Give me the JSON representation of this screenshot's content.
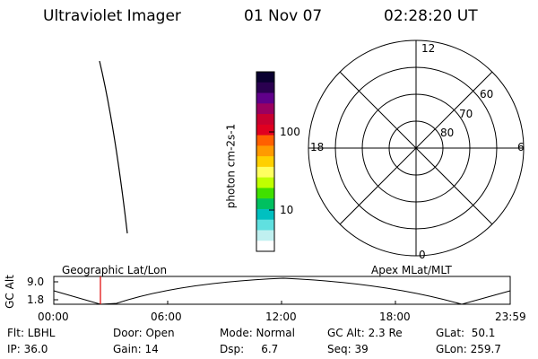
{
  "header": {
    "instrument": "Ultraviolet Imager",
    "date": "01 Nov 07",
    "time": "02:28:20 UT"
  },
  "colorbar": {
    "label": "photon cm-2s-1",
    "ticks": [
      "100",
      "10"
    ],
    "colors": [
      "#0a0030",
      "#2a0050",
      "#60008a",
      "#9a0060",
      "#c80030",
      "#e00020",
      "#ff6000",
      "#ff9a00",
      "#ffd000",
      "#ffff60",
      "#c0ff00",
      "#40e000",
      "#00c060",
      "#00c0c0",
      "#60e0e0",
      "#c0f0f0",
      "#ffffff"
    ]
  },
  "polar": {
    "ring_labels": [
      "80",
      "70",
      "60"
    ],
    "mlt_labels": {
      "top": "12",
      "bottom": "0",
      "left": "18",
      "right": "6"
    }
  },
  "orbit": {
    "geo_label": "Geographic Lat/Lon",
    "apex_label": "Apex MLat/MLT",
    "y_axis_label": "GC Alt",
    "y_ticks": [
      "9.0",
      "1.8"
    ],
    "x_ticks": [
      "00:00",
      "06:00",
      "12:00",
      "18:00",
      "23:59"
    ],
    "marker_color": "#e00000"
  },
  "footer": {
    "flt": "Flt: LBHL",
    "ip": "IP: 36.0",
    "door": "Door: Open",
    "gain": "Gain: 14",
    "mode": "Mode: Normal",
    "dsp": "Dsp:     6.7",
    "gcalt": "GC Alt: 2.3 Re",
    "seq": "Seq: 39",
    "glat": "GLat:  50.1",
    "glon": "GLon: 259.7"
  }
}
